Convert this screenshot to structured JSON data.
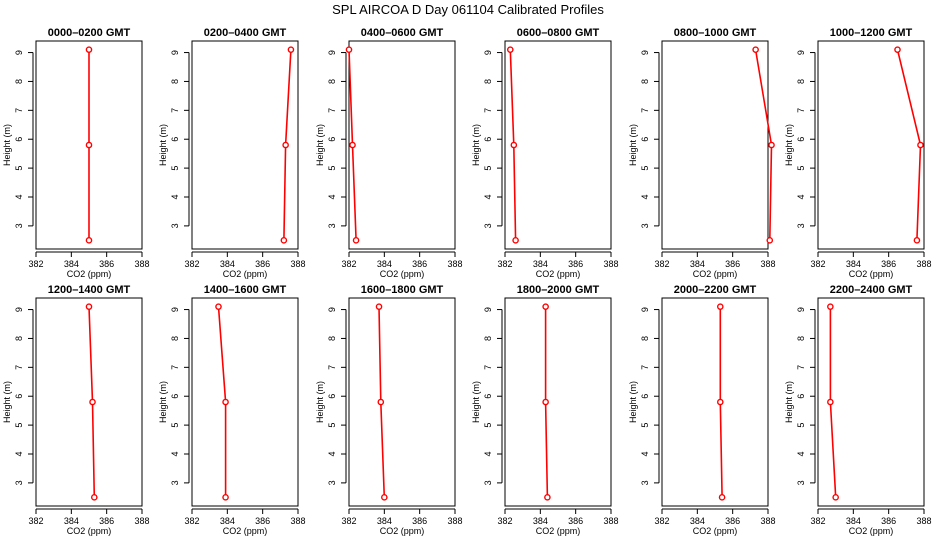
{
  "figure": {
    "title": "SPL AIRCOA D  Day 061104  Calibrated Profiles"
  },
  "chart_data": [
    {
      "type": "line",
      "title": "0000–0200 GMT",
      "xlabel": "CO2 (ppm)",
      "ylabel": "Height (m)",
      "xlim": [
        382,
        388
      ],
      "ylim": [
        2.2,
        9.4
      ],
      "x_ticks": [
        382,
        384,
        386,
        388
      ],
      "y_ticks": [
        3,
        4,
        5,
        6,
        7,
        8,
        9
      ],
      "color": "#ff0000",
      "points": [
        {
          "x": 385.0,
          "y": 9.1
        },
        {
          "x": 385.0,
          "y": 5.8
        },
        {
          "x": 385.0,
          "y": 2.5
        }
      ]
    },
    {
      "type": "line",
      "title": "0200–0400 GMT",
      "xlabel": "CO2 (ppm)",
      "ylabel": "Height (m)",
      "xlim": [
        382,
        388
      ],
      "ylim": [
        2.2,
        9.4
      ],
      "x_ticks": [
        382,
        384,
        386,
        388
      ],
      "y_ticks": [
        3,
        4,
        5,
        6,
        7,
        8,
        9
      ],
      "color": "#ff0000",
      "points": [
        {
          "x": 387.6,
          "y": 9.1
        },
        {
          "x": 387.3,
          "y": 5.8
        },
        {
          "x": 387.2,
          "y": 2.5
        }
      ]
    },
    {
      "type": "line",
      "title": "0400–0600 GMT",
      "xlabel": "CO2 (ppm)",
      "ylabel": "Height (m)",
      "xlim": [
        382,
        388
      ],
      "ylim": [
        2.2,
        9.4
      ],
      "x_ticks": [
        382,
        384,
        386,
        388
      ],
      "y_ticks": [
        3,
        4,
        5,
        6,
        7,
        8,
        9
      ],
      "color": "#ff0000",
      "points": [
        {
          "x": 382.0,
          "y": 9.1
        },
        {
          "x": 382.2,
          "y": 5.8
        },
        {
          "x": 382.4,
          "y": 2.5
        }
      ]
    },
    {
      "type": "line",
      "title": "0600–0800 GMT",
      "xlabel": "CO2 (ppm)",
      "ylabel": "Height (m)",
      "xlim": [
        382,
        388
      ],
      "ylim": [
        2.2,
        9.4
      ],
      "x_ticks": [
        382,
        384,
        386,
        388
      ],
      "y_ticks": [
        3,
        4,
        5,
        6,
        7,
        8,
        9
      ],
      "color": "#ff0000",
      "points": [
        {
          "x": 382.3,
          "y": 9.1
        },
        {
          "x": 382.5,
          "y": 5.8
        },
        {
          "x": 382.6,
          "y": 2.5
        }
      ]
    },
    {
      "type": "line",
      "title": "0800–1000 GMT",
      "xlabel": "CO2 (ppm)",
      "ylabel": "Height (m)",
      "xlim": [
        382,
        388
      ],
      "ylim": [
        2.2,
        9.4
      ],
      "x_ticks": [
        382,
        384,
        386,
        388
      ],
      "y_ticks": [
        3,
        4,
        5,
        6,
        7,
        8,
        9
      ],
      "color": "#ff0000",
      "points": [
        {
          "x": 387.3,
          "y": 9.1
        },
        {
          "x": 388.2,
          "y": 5.8
        },
        {
          "x": 388.1,
          "y": 2.5
        }
      ]
    },
    {
      "type": "line",
      "title": "1000–1200 GMT",
      "xlabel": "CO2 (ppm)",
      "ylabel": "Height (m)",
      "xlim": [
        382,
        388
      ],
      "ylim": [
        2.2,
        9.4
      ],
      "x_ticks": [
        382,
        384,
        386,
        388
      ],
      "y_ticks": [
        3,
        4,
        5,
        6,
        7,
        8,
        9
      ],
      "color": "#ff0000",
      "points": [
        {
          "x": 386.5,
          "y": 9.1
        },
        {
          "x": 387.8,
          "y": 5.8
        },
        {
          "x": 387.6,
          "y": 2.5
        }
      ]
    },
    {
      "type": "line",
      "title": "1200–1400 GMT",
      "xlabel": "CO2 (ppm)",
      "ylabel": "Height (m)",
      "xlim": [
        382,
        388
      ],
      "ylim": [
        2.2,
        9.4
      ],
      "x_ticks": [
        382,
        384,
        386,
        388
      ],
      "y_ticks": [
        3,
        4,
        5,
        6,
        7,
        8,
        9
      ],
      "color": "#ff0000",
      "points": [
        {
          "x": 385.0,
          "y": 9.1
        },
        {
          "x": 385.2,
          "y": 5.8
        },
        {
          "x": 385.3,
          "y": 2.5
        }
      ]
    },
    {
      "type": "line",
      "title": "1400–1600 GMT",
      "xlabel": "CO2 (ppm)",
      "ylabel": "Height (m)",
      "xlim": [
        382,
        388
      ],
      "ylim": [
        2.2,
        9.4
      ],
      "x_ticks": [
        382,
        384,
        386,
        388
      ],
      "y_ticks": [
        3,
        4,
        5,
        6,
        7,
        8,
        9
      ],
      "color": "#ff0000",
      "points": [
        {
          "x": 383.5,
          "y": 9.1
        },
        {
          "x": 383.9,
          "y": 5.8
        },
        {
          "x": 383.9,
          "y": 2.5
        }
      ]
    },
    {
      "type": "line",
      "title": "1600–1800 GMT",
      "xlabel": "CO2 (ppm)",
      "ylabel": "Height (m)",
      "xlim": [
        382,
        388
      ],
      "ylim": [
        2.2,
        9.4
      ],
      "x_ticks": [
        382,
        384,
        386,
        388
      ],
      "y_ticks": [
        3,
        4,
        5,
        6,
        7,
        8,
        9
      ],
      "color": "#ff0000",
      "points": [
        {
          "x": 383.7,
          "y": 9.1
        },
        {
          "x": 383.8,
          "y": 5.8
        },
        {
          "x": 384.0,
          "y": 2.5
        }
      ]
    },
    {
      "type": "line",
      "title": "1800–2000 GMT",
      "xlabel": "CO2 (ppm)",
      "ylabel": "Height (m)",
      "xlim": [
        382,
        388
      ],
      "ylim": [
        2.2,
        9.4
      ],
      "x_ticks": [
        382,
        384,
        386,
        388
      ],
      "y_ticks": [
        3,
        4,
        5,
        6,
        7,
        8,
        9
      ],
      "color": "#ff0000",
      "points": [
        {
          "x": 384.3,
          "y": 9.1
        },
        {
          "x": 384.3,
          "y": 5.8
        },
        {
          "x": 384.4,
          "y": 2.5
        }
      ]
    },
    {
      "type": "line",
      "title": "2000–2200 GMT",
      "xlabel": "CO2 (ppm)",
      "ylabel": "Height (m)",
      "xlim": [
        382,
        388
      ],
      "ylim": [
        2.2,
        9.4
      ],
      "x_ticks": [
        382,
        384,
        386,
        388
      ],
      "y_ticks": [
        3,
        4,
        5,
        6,
        7,
        8,
        9
      ],
      "color": "#ff0000",
      "points": [
        {
          "x": 385.3,
          "y": 9.1
        },
        {
          "x": 385.3,
          "y": 5.8
        },
        {
          "x": 385.4,
          "y": 2.5
        }
      ]
    },
    {
      "type": "line",
      "title": "2200–2400 GMT",
      "xlabel": "CO2 (ppm)",
      "ylabel": "Height (m)",
      "xlim": [
        382,
        388
      ],
      "ylim": [
        2.2,
        9.4
      ],
      "x_ticks": [
        382,
        384,
        386,
        388
      ],
      "y_ticks": [
        3,
        4,
        5,
        6,
        7,
        8,
        9
      ],
      "color": "#ff0000",
      "points": [
        {
          "x": 382.7,
          "y": 9.1
        },
        {
          "x": 382.7,
          "y": 5.8
        },
        {
          "x": 383.0,
          "y": 2.5
        }
      ]
    }
  ]
}
